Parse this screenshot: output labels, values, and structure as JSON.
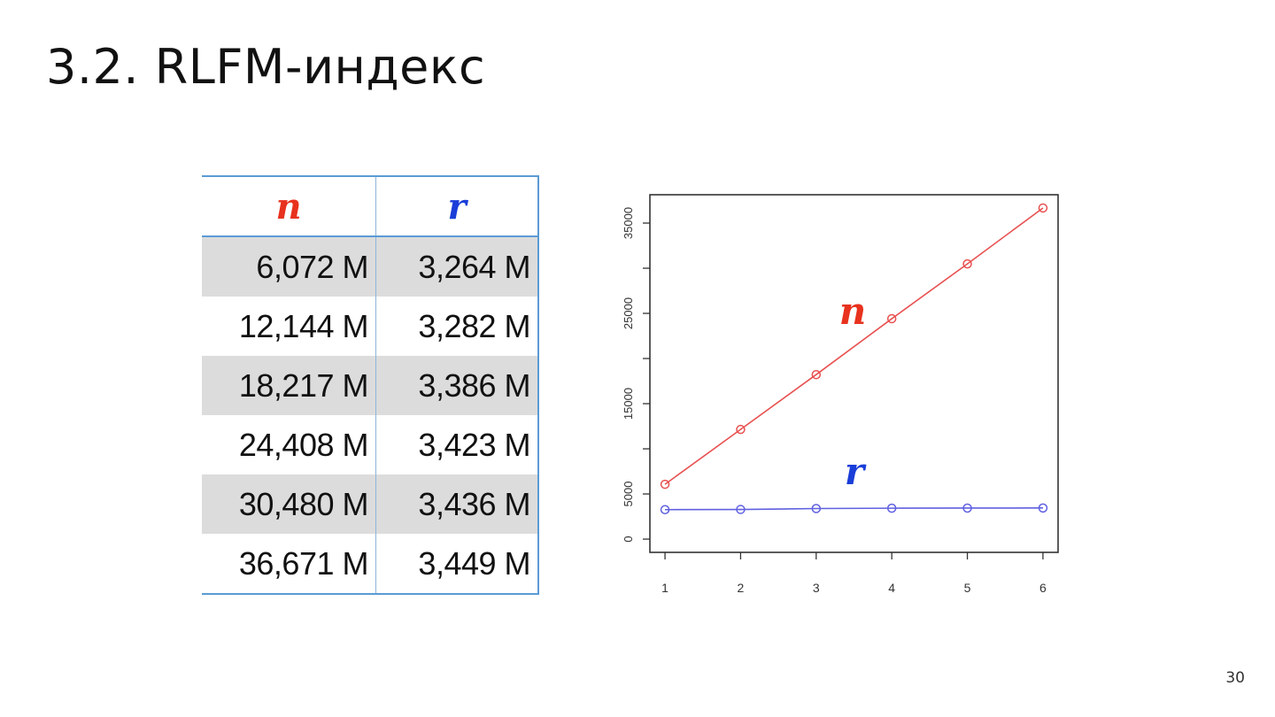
{
  "slide": {
    "title": "3.2. RLFM-индекс",
    "page_number": "30"
  },
  "table": {
    "headers": [
      "n",
      "r"
    ],
    "header_colors": [
      "#e8321e",
      "#1a3ed8"
    ],
    "rows": [
      [
        "6,072 M",
        "3,264 M"
      ],
      [
        "12,144 M",
        "3,282 M"
      ],
      [
        "18,217 M",
        "3,386 M"
      ],
      [
        "24,408 M",
        "3,423 M"
      ],
      [
        "30,480 M",
        "3,436 M"
      ],
      [
        "36,671 M",
        "3,449 M"
      ]
    ]
  },
  "chart_data": {
    "type": "line",
    "title": "",
    "xlabel": "",
    "ylabel": "",
    "x": [
      1,
      2,
      3,
      4,
      5,
      6
    ],
    "series": [
      {
        "name": "n",
        "color": "#e85050",
        "label_color": "#e8321e",
        "values": [
          6072,
          12144,
          18217,
          24408,
          30480,
          36671
        ]
      },
      {
        "name": "r",
        "color": "#6060e0",
        "label_color": "#1a3ed8",
        "values": [
          3264,
          3282,
          3386,
          3423,
          3436,
          3449
        ]
      }
    ],
    "xlim": [
      1,
      6
    ],
    "ylim": [
      0,
      36671
    ],
    "x_ticks": [
      "1",
      "2",
      "3",
      "4",
      "5",
      "6"
    ],
    "y_ticks": [
      0,
      5000,
      10000,
      15000,
      20000,
      25000,
      30000,
      35000
    ],
    "y_tick_labels": [
      "0",
      "5000",
      "",
      "15000",
      "",
      "25000",
      "",
      "35000"
    ],
    "grid": false,
    "legend": "inline labels"
  }
}
